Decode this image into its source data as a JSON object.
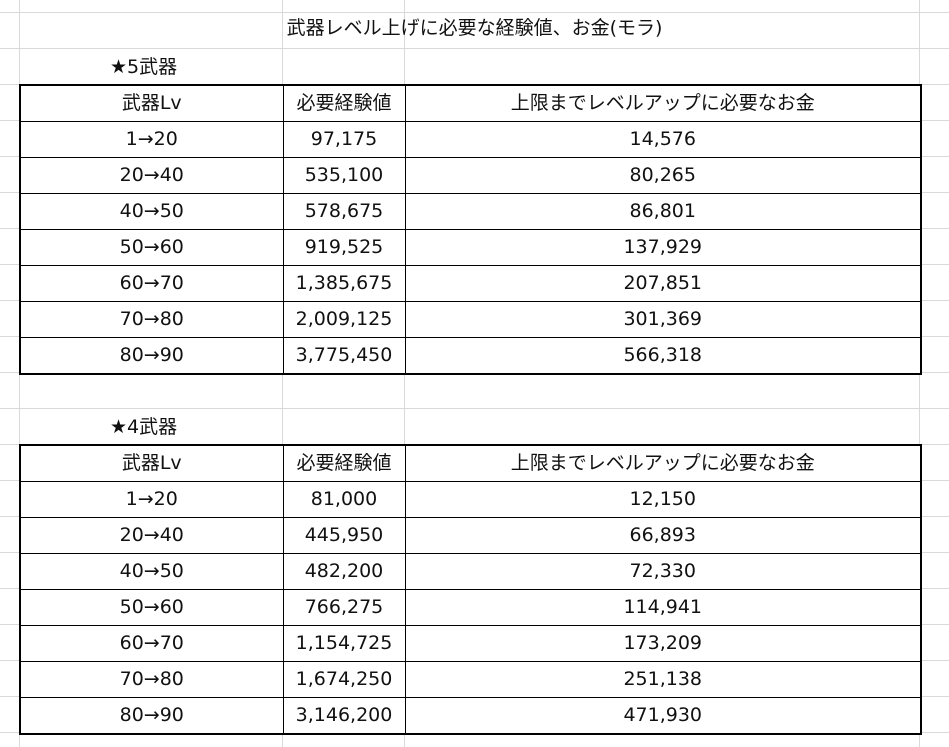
{
  "title": "武器レベル上げに必要な経験値、お金(モラ)",
  "sections": [
    {
      "label": "★5武器",
      "header": [
        "武器Lv",
        "必要経験値",
        "上限までレベルアップに必要なお金"
      ],
      "rows": [
        [
          "1→20",
          "97,175",
          "14,576"
        ],
        [
          "20→40",
          "535,100",
          "80,265"
        ],
        [
          "40→50",
          "578,675",
          "86,801"
        ],
        [
          "50→60",
          "919,525",
          "137,929"
        ],
        [
          "60→70",
          "1,385,675",
          "207,851"
        ],
        [
          "70→80",
          "2,009,125",
          "301,369"
        ],
        [
          "80→90",
          "3,775,450",
          "566,318"
        ]
      ]
    },
    {
      "label": "★4武器",
      "header": [
        "武器Lv",
        "必要経験値",
        "上限までレベルアップに必要なお金"
      ],
      "rows": [
        [
          "1→20",
          "81,000",
          "12,150"
        ],
        [
          "20→40",
          "445,950",
          "66,893"
        ],
        [
          "40→50",
          "482,200",
          "72,330"
        ],
        [
          "50→60",
          "766,275",
          "114,941"
        ],
        [
          "60→70",
          "1,154,725",
          "173,209"
        ],
        [
          "70→80",
          "1,674,250",
          "251,138"
        ],
        [
          "80→90",
          "3,146,200",
          "471,930"
        ]
      ]
    }
  ]
}
